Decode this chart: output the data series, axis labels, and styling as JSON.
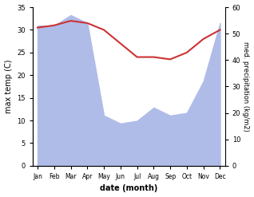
{
  "months": [
    "Jan",
    "Feb",
    "Mar",
    "Apr",
    "May",
    "Jun",
    "Jul",
    "Aug",
    "Sep",
    "Oct",
    "Nov",
    "Dec"
  ],
  "temperature": [
    30.5,
    31.0,
    32.0,
    31.5,
    30.0,
    27.0,
    24.0,
    24.0,
    23.5,
    25.0,
    28.0,
    30.0
  ],
  "precipitation": [
    53,
    53,
    57,
    54,
    19,
    16,
    17,
    22,
    19,
    20,
    32,
    54
  ],
  "temp_color": "#cc3333",
  "precip_color": "#b0bce8",
  "temp_ylim": [
    0,
    35
  ],
  "precip_ylim": [
    0,
    60
  ],
  "temp_yticks": [
    0,
    5,
    10,
    15,
    20,
    25,
    30,
    35
  ],
  "precip_yticks": [
    0,
    10,
    20,
    30,
    40,
    50,
    60
  ],
  "xlabel": "date (month)",
  "ylabel_left": "max temp (C)",
  "ylabel_right": "med. precipitation (kg/m2)",
  "figsize": [
    3.18,
    2.47
  ],
  "dpi": 100
}
